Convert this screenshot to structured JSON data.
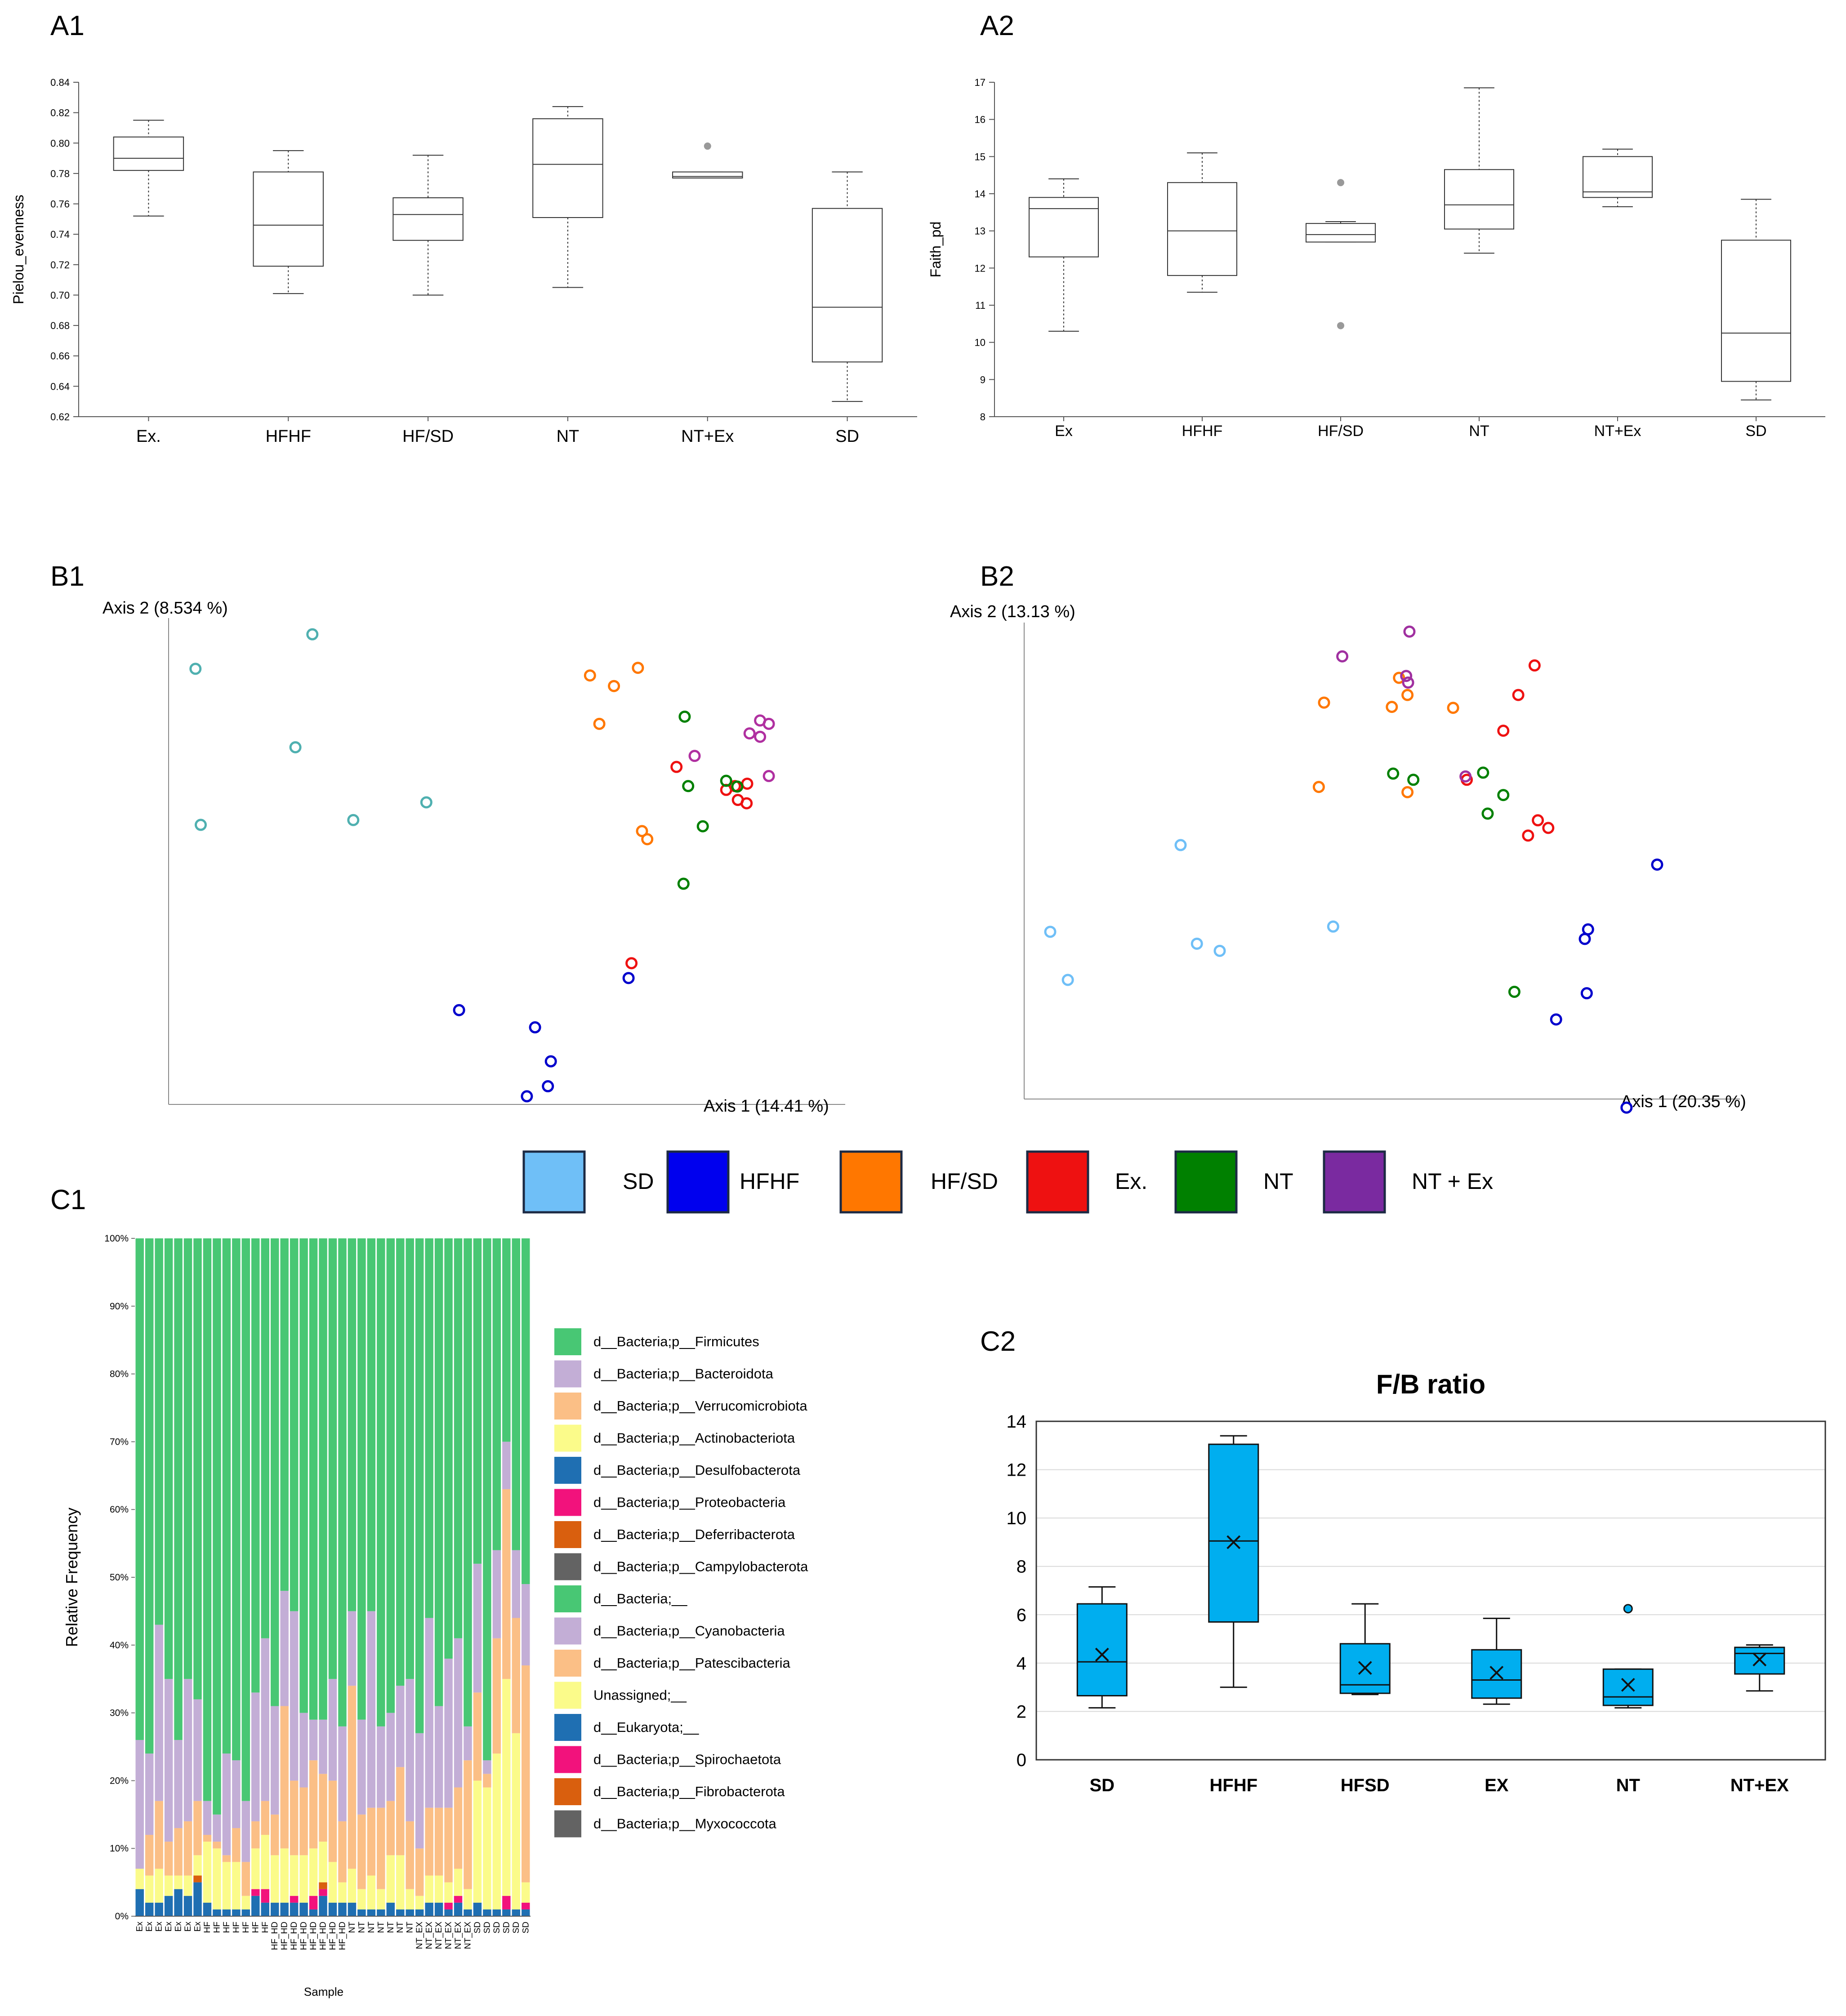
{
  "panels": {
    "a1": "A1",
    "a2": "A2",
    "b1": "B1",
    "b2": "B2",
    "c1": "C1",
    "c2": "C2"
  },
  "legend": {
    "items": [
      {
        "label": "SD",
        "color": "#6fbff7"
      },
      {
        "label": "HFHF",
        "color": "#0000ee"
      },
      {
        "label": "HF/SD",
        "color": "#ff7700"
      },
      {
        "label": "Ex.",
        "color": "#ee1111"
      },
      {
        "label": "NT",
        "color": "#008000"
      },
      {
        "label": "NT + Ex",
        "color": "#7a2aa0"
      }
    ]
  },
  "chart_data": [
    {
      "id": "A1",
      "type": "box",
      "ylabel": "Pielou_evenness",
      "ylim": [
        0.62,
        0.84
      ],
      "yticks": [
        "0.62",
        "0.64",
        "0.66",
        "0.68",
        "0.70",
        "0.72",
        "0.74",
        "0.76",
        "0.78",
        "0.80",
        "0.82",
        "0.84"
      ],
      "categories": [
        "Ex.",
        "HFHF",
        "HF/SD",
        "NT",
        "NT+Ex",
        "SD"
      ],
      "boxes": [
        {
          "min": 0.752,
          "q1": 0.782,
          "median": 0.79,
          "q3": 0.804,
          "max": 0.815,
          "outliers": []
        },
        {
          "min": 0.701,
          "q1": 0.719,
          "median": 0.746,
          "q3": 0.781,
          "max": 0.795,
          "outliers": []
        },
        {
          "min": 0.7,
          "q1": 0.736,
          "median": 0.753,
          "q3": 0.764,
          "max": 0.792,
          "outliers": []
        },
        {
          "min": 0.705,
          "q1": 0.751,
          "median": 0.786,
          "q3": 0.816,
          "max": 0.824,
          "outliers": []
        },
        {
          "min": 0.777,
          "q1": 0.777,
          "median": 0.778,
          "q3": 0.781,
          "max": 0.781,
          "outliers": [
            0.798
          ]
        },
        {
          "min": 0.63,
          "q1": 0.656,
          "median": 0.692,
          "q3": 0.757,
          "max": 0.781,
          "outliers": []
        }
      ]
    },
    {
      "id": "A2",
      "type": "box",
      "ylabel": "Faith_pd",
      "ylim": [
        8,
        17
      ],
      "yticks": [
        "8",
        "9",
        "10",
        "11",
        "12",
        "13",
        "14",
        "15",
        "16",
        "17"
      ],
      "categories": [
        "Ex",
        "HFHF",
        "HF/SD",
        "NT",
        "NT+Ex",
        "SD"
      ],
      "boxes": [
        {
          "min": 10.3,
          "q1": 12.3,
          "median": 13.6,
          "q3": 13.9,
          "max": 14.4,
          "outliers": []
        },
        {
          "min": 11.35,
          "q1": 11.8,
          "median": 13.0,
          "q3": 14.3,
          "max": 15.1,
          "outliers": []
        },
        {
          "min": 12.7,
          "q1": 12.7,
          "median": 12.9,
          "q3": 13.2,
          "max": 13.25,
          "outliers": [
            14.3,
            10.45
          ]
        },
        {
          "min": 12.4,
          "q1": 13.05,
          "median": 13.7,
          "q3": 14.65,
          "max": 16.85,
          "outliers": []
        },
        {
          "min": 13.65,
          "q1": 13.9,
          "median": 14.05,
          "q3": 15.0,
          "max": 15.2,
          "outliers": []
        },
        {
          "min": 8.45,
          "q1": 8.95,
          "median": 10.25,
          "q3": 12.75,
          "max": 13.85,
          "outliers": []
        }
      ]
    },
    {
      "id": "B1",
      "type": "scatter",
      "xlabel": "Axis 1 (14.41 %)",
      "ylabel": "Axis 2 (8.534 %)",
      "xlim": [
        0,
        100
      ],
      "ylim": [
        0,
        100
      ],
      "series": [
        {
          "name": "SD",
          "color": "#4fb0b0",
          "points": [
            [
              4.6,
              91.0
            ],
            [
              5.5,
              58.4
            ],
            [
              21.7,
              74.6
            ],
            [
              24.6,
              98.2
            ],
            [
              31.6,
              59.4
            ],
            [
              44.1,
              63.1
            ]
          ]
        },
        {
          "name": "HFHF",
          "color": "#0000cc",
          "points": [
            [
              49.7,
              19.7
            ],
            [
              62.7,
              16.1
            ],
            [
              61.3,
              1.7
            ],
            [
              65.4,
              9.0
            ],
            [
              64.9,
              3.8
            ],
            [
              78.7,
              26.4
            ]
          ]
        },
        {
          "name": "HF/SD",
          "color": "#ff7700",
          "points": [
            [
              72.1,
              89.6
            ],
            [
              76.2,
              87.4
            ],
            [
              80.3,
              91.2
            ],
            [
              73.7,
              79.5
            ],
            [
              81.0,
              57.1
            ],
            [
              81.9,
              55.4
            ]
          ]
        },
        {
          "name": "Ex.",
          "color": "#ee1111",
          "points": [
            [
              86.9,
              70.5
            ],
            [
              95.4,
              65.7
            ],
            [
              97.4,
              63.6
            ],
            [
              96.9,
              66.5
            ],
            [
              99.0,
              67.0
            ],
            [
              98.9,
              62.9
            ],
            [
              79.2,
              29.5
            ]
          ]
        },
        {
          "name": "NT",
          "color": "#008000",
          "points": [
            [
              88.3,
              81.0
            ],
            [
              88.9,
              66.5
            ],
            [
              95.4,
              67.6
            ],
            [
              97.3,
              66.4
            ],
            [
              91.4,
              58.1
            ],
            [
              88.1,
              46.1
            ]
          ]
        },
        {
          "name": "NT + Ex",
          "color": "#b030a0",
          "points": [
            [
              90.0,
              72.8
            ],
            [
              99.4,
              77.5
            ],
            [
              101.2,
              76.8
            ],
            [
              101.2,
              80.2
            ],
            [
              102.7,
              79.5
            ],
            [
              102.7,
              68.6
            ]
          ]
        }
      ]
    },
    {
      "id": "B2",
      "type": "scatter",
      "xlabel": "Axis 1 (20.35 %)",
      "ylabel": "Axis 2 (13.13 %)",
      "xlim": [
        0,
        100
      ],
      "ylim": [
        0,
        100
      ],
      "series": [
        {
          "name": "SD",
          "color": "#6fbff7",
          "points": [
            [
              4.0,
              35.1
            ],
            [
              6.7,
              25.0
            ],
            [
              24.0,
              53.3
            ],
            [
              26.5,
              32.6
            ],
            [
              30.0,
              31.1
            ],
            [
              47.4,
              36.2
            ]
          ]
        },
        {
          "name": "HFHF",
          "color": "#0000cc",
          "points": [
            [
              97.1,
              49.2
            ],
            [
              86.5,
              35.6
            ],
            [
              86.0,
              33.6
            ],
            [
              86.3,
              22.2
            ],
            [
              81.6,
              16.7
            ],
            [
              92.4,
              -1.8
            ]
          ]
        },
        {
          "name": "HF/SD",
          "color": "#ff7700",
          "points": [
            [
              46.0,
              83.2
            ],
            [
              45.2,
              65.5
            ],
            [
              56.4,
              82.3
            ],
            [
              57.5,
              88.4
            ],
            [
              58.8,
              84.8
            ],
            [
              58.8,
              64.4
            ],
            [
              65.8,
              82.1
            ]
          ]
        },
        {
          "name": "Ex.",
          "color": "#ee1111",
          "points": [
            [
              78.3,
              91.0
            ],
            [
              75.8,
              84.8
            ],
            [
              73.5,
              77.3
            ],
            [
              67.9,
              67.0
            ],
            [
              78.8,
              58.5
            ],
            [
              77.3,
              55.3
            ],
            [
              80.4,
              56.9
            ]
          ]
        },
        {
          "name": "NT",
          "color": "#008000",
          "points": [
            [
              56.6,
              68.3
            ],
            [
              59.7,
              67.0
            ],
            [
              70.4,
              68.5
            ],
            [
              73.5,
              63.8
            ],
            [
              71.1,
              59.9
            ],
            [
              75.2,
              22.5
            ]
          ]
        },
        {
          "name": "NT + Ex",
          "color": "#a030a0",
          "points": [
            [
              48.8,
              92.9
            ],
            [
              58.6,
              88.8
            ],
            [
              58.9,
              87.4
            ],
            [
              59.1,
              98.1
            ],
            [
              67.7,
              67.7
            ]
          ]
        }
      ]
    },
    {
      "id": "C1",
      "type": "stacked-bar",
      "ylabel": "Relative Frequency",
      "xlabel": "Sample",
      "ylim": [
        0,
        100
      ],
      "yticks": [
        "0%",
        "10%",
        "20%",
        "30%",
        "40%",
        "50%",
        "60%",
        "70%",
        "80%",
        "90%",
        "100%"
      ],
      "categories": [
        "Ex",
        "Ex",
        "Ex",
        "Ex",
        "Ex",
        "Ex",
        "Ex",
        "HF",
        "HF",
        "HF",
        "HF",
        "HF",
        "HF",
        "HF",
        "HF_HD",
        "HF_HD",
        "HF_HD",
        "HF_HD",
        "HF_HD",
        "HF_HD",
        "HF_HD",
        "HF_HD",
        "NT",
        "NT",
        "NT",
        "NT",
        "NT",
        "NT",
        "NT",
        "NT_EX",
        "NT_EX",
        "NT_EX",
        "NT_EX",
        "NT_EX",
        "NT_EX",
        "SD",
        "SD",
        "SD",
        "SD",
        "SD",
        "SD"
      ],
      "legend": [
        {
          "label": "d__Bacteria;p__Firmicutes",
          "color": "#48c774"
        },
        {
          "label": "d__Bacteria;p__Bacteroidota",
          "color": "#c3aed6"
        },
        {
          "label": "d__Bacteria;p__Verrucomicrobiota",
          "color": "#fbbf86"
        },
        {
          "label": "d__Bacteria;p__Actinobacteriota",
          "color": "#fbfb8a"
        },
        {
          "label": "d__Bacteria;p__Desulfobacterota",
          "color": "#1f6fb2"
        },
        {
          "label": "d__Bacteria;p__Proteobacteria",
          "color": "#f2127c"
        },
        {
          "label": "d__Bacteria;p__Deferribacterota",
          "color": "#d95f0e"
        },
        {
          "label": "d__Bacteria;p__Campylobacterota",
          "color": "#636363"
        },
        {
          "label": "d__Bacteria;__",
          "color": "#48c774"
        },
        {
          "label": "d__Bacteria;p__Cyanobacteria",
          "color": "#c3aed6"
        },
        {
          "label": "d__Bacteria;p__Patescibacteria",
          "color": "#fbbf86"
        },
        {
          "label": "Unassigned;__",
          "color": "#fbfb8a"
        },
        {
          "label": "d__Eukaryota;__",
          "color": "#1f6fb2"
        },
        {
          "label": "d__Bacteria;p__Spirochaetota",
          "color": "#f2127c"
        },
        {
          "label": "d__Bacteria;p__Fibrobacterota",
          "color": "#d95f0e"
        },
        {
          "label": "d__Bacteria;p__Myxococcota",
          "color": "#636363"
        }
      ],
      "stack_order": [
        "Desulfobacterota",
        "Proteobacteria",
        "Deferribacterota",
        "Actinobacteriota",
        "Verrucomicrobiota",
        "Bacteroidota",
        "Firmicutes"
      ],
      "bars": [
        [
          4,
          0,
          0,
          3,
          0,
          19
        ],
        [
          2,
          0,
          0,
          4,
          6,
          12
        ],
        [
          2,
          0,
          0,
          5,
          10,
          26
        ],
        [
          3,
          0,
          0,
          3,
          5,
          24
        ],
        [
          4,
          0,
          0,
          2,
          7,
          13
        ],
        [
          3,
          0,
          0,
          3,
          8,
          21
        ],
        [
          5,
          0,
          1,
          3,
          8,
          15
        ],
        [
          2,
          0,
          0,
          9,
          1,
          5
        ],
        [
          1,
          0,
          0,
          9,
          1,
          4
        ],
        [
          1,
          0,
          0,
          7,
          1,
          15
        ],
        [
          1,
          0,
          0,
          7,
          5,
          10
        ],
        [
          1,
          0,
          0,
          2,
          5,
          9
        ],
        [
          3,
          1,
          0,
          6,
          4,
          19
        ],
        [
          2,
          2,
          0,
          8,
          5,
          24
        ],
        [
          2,
          0,
          0,
          7,
          6,
          16
        ],
        [
          2,
          0,
          0,
          8,
          21,
          17
        ],
        [
          2,
          1,
          0,
          6,
          11,
          25
        ],
        [
          2,
          0,
          0,
          7,
          10,
          11
        ],
        [
          1,
          2,
          0,
          7,
          13,
          6
        ],
        [
          3,
          1,
          1,
          6,
          10,
          8
        ],
        [
          2,
          0,
          0,
          6,
          12,
          15
        ],
        [
          2,
          0,
          0,
          3,
          9,
          14
        ],
        [
          2,
          0,
          0,
          5,
          27,
          11
        ],
        [
          1,
          0,
          0,
          3,
          11,
          14
        ],
        [
          1,
          0,
          0,
          5,
          10,
          29
        ],
        [
          1,
          0,
          0,
          3,
          12,
          12
        ],
        [
          2,
          0,
          0,
          7,
          8,
          13
        ],
        [
          1,
          0,
          0,
          8,
          13,
          12
        ],
        [
          1,
          0,
          0,
          3,
          10,
          21
        ],
        [
          1,
          0,
          0,
          2,
          7,
          17
        ],
        [
          2,
          0,
          0,
          4,
          10,
          28
        ],
        [
          2,
          0,
          0,
          4,
          10,
          15
        ],
        [
          1,
          1,
          0,
          3,
          11,
          22
        ],
        [
          2,
          1,
          0,
          4,
          12,
          22
        ],
        [
          1,
          0,
          0,
          3,
          19,
          5
        ],
        [
          2,
          0,
          0,
          18,
          13,
          19
        ],
        [
          1,
          0,
          0,
          18,
          2,
          2
        ],
        [
          1,
          0,
          0,
          23,
          17,
          13
        ],
        [
          1,
          2,
          0,
          32,
          28,
          7
        ],
        [
          1,
          0,
          0,
          26,
          17,
          10
        ],
        [
          1,
          1,
          0,
          3,
          32,
          12
        ]
      ]
    },
    {
      "id": "C2",
      "type": "box",
      "title": "F/B ratio",
      "ylim": [
        0,
        14
      ],
      "yticks": [
        "0",
        "2",
        "4",
        "6",
        "8",
        "10",
        "12",
        "14"
      ],
      "categories": [
        "SD",
        "HFHF",
        "HFSD",
        "EX",
        "NT",
        "NT+EX"
      ],
      "boxes": [
        {
          "min": 2.15,
          "q1": 2.65,
          "median": 4.05,
          "q3": 6.45,
          "max": 7.15,
          "mean": 4.35,
          "outliers": []
        },
        {
          "min": 3.0,
          "q1": 5.7,
          "median": 9.05,
          "q3": 13.05,
          "max": 13.4,
          "mean": 9.0,
          "outliers": []
        },
        {
          "min": 2.7,
          "q1": 2.75,
          "median": 3.1,
          "q3": 4.8,
          "max": 6.45,
          "mean": 3.8,
          "outliers": []
        },
        {
          "min": 2.3,
          "q1": 2.55,
          "median": 3.3,
          "q3": 4.55,
          "max": 5.85,
          "mean": 3.6,
          "outliers": []
        },
        {
          "min": 2.15,
          "q1": 2.25,
          "median": 2.6,
          "q3": 3.75,
          "max": 3.75,
          "mean": 3.1,
          "outliers": [
            6.25
          ]
        },
        {
          "min": 2.85,
          "q1": 3.55,
          "median": 4.4,
          "q3": 4.65,
          "max": 4.75,
          "mean": 4.15,
          "outliers": []
        }
      ]
    }
  ]
}
